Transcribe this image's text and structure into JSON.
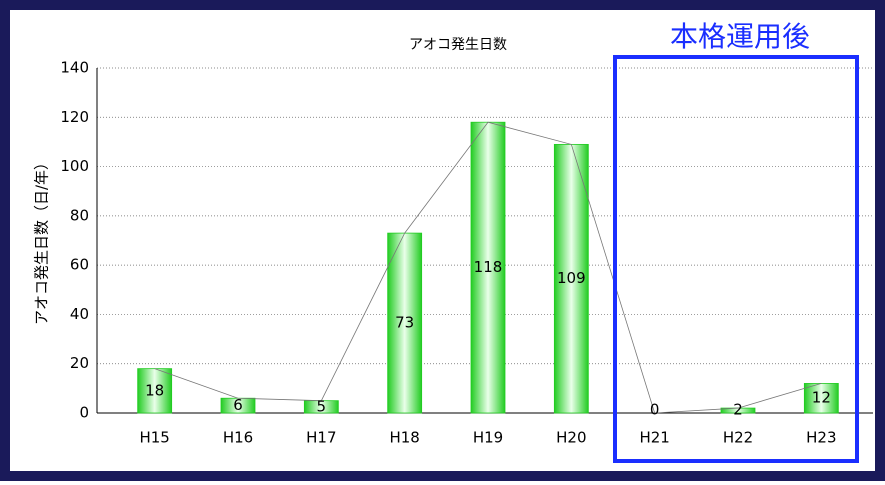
{
  "chart_data": {
    "type": "bar",
    "title": "アオコ発生日数",
    "y_label": "アオコ発生日数（日/年）",
    "annotation": "本格運用後",
    "categories": [
      "H15",
      "H16",
      "H17",
      "H18",
      "H19",
      "H20",
      "H21",
      "H22",
      "H23"
    ],
    "values": [
      18,
      6,
      5,
      73,
      118,
      109,
      0,
      2,
      12
    ],
    "color": "#22cc22",
    "line_color": "#777777",
    "ylim": [
      0,
      140
    ],
    "yticks": [
      0,
      20,
      40,
      60,
      80,
      100,
      120,
      140
    ],
    "grid": true
  }
}
